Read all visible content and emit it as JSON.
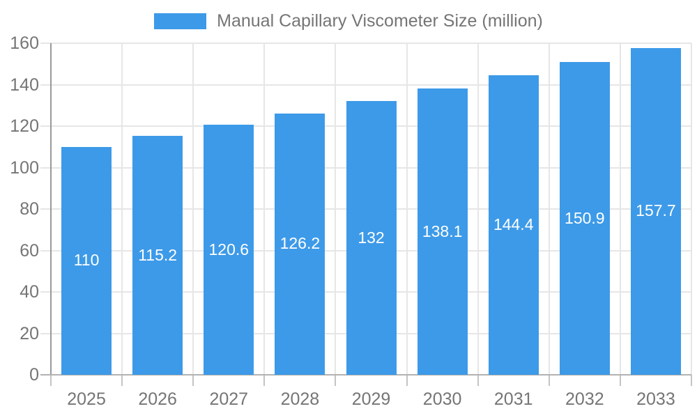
{
  "chart_data": {
    "type": "bar",
    "categories": [
      "2025",
      "2026",
      "2027",
      "2028",
      "2029",
      "2030",
      "2031",
      "2032",
      "2033"
    ],
    "series": [
      {
        "name": "Manual Capillary Viscometer Size (million)",
        "values": [
          110,
          115.2,
          120.6,
          126.2,
          132,
          138.1,
          144.4,
          150.9,
          157.7
        ]
      }
    ],
    "bar_value_labels": [
      "110",
      "115.2",
      "120.6",
      "126.2",
      "132",
      "138.1",
      "144.4",
      "150.9",
      "157.7"
    ],
    "title": "",
    "xlabel": "",
    "ylabel": "",
    "ylim": [
      0,
      160
    ],
    "yticks": [
      0,
      20,
      40,
      60,
      80,
      100,
      120,
      140,
      160
    ],
    "grid": "on",
    "legend_position": "top",
    "colors": {
      "bar": "#3d9ae8",
      "y_axis": "#999999",
      "x_axis": "#b2b2b2",
      "gridline": "#e6e6e6",
      "tick": "#c4c4c4",
      "axis_label": "#757575",
      "legend_text": "#757575",
      "bar_value_label": "#ffffff",
      "background": "#ffffff"
    }
  }
}
